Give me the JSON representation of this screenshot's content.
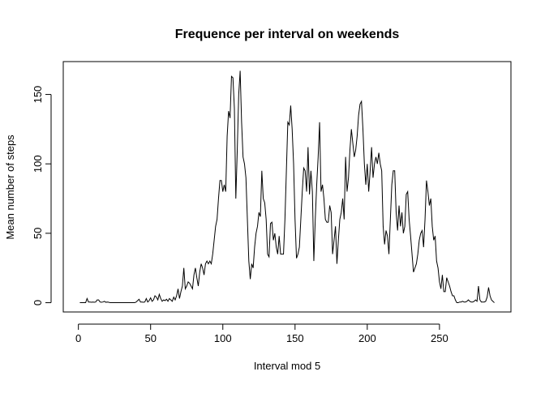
{
  "chart_data": {
    "type": "line",
    "title": "Frequence per interval on weekends",
    "xlabel": "Interval mod 5",
    "ylabel": "Mean number of steps",
    "color": "#000000",
    "x": [
      1,
      2,
      3,
      4,
      5,
      6,
      7,
      8,
      9,
      10,
      11,
      12,
      13,
      14,
      15,
      16,
      17,
      18,
      19,
      20,
      21,
      22,
      23,
      24,
      25,
      26,
      27,
      28,
      29,
      30,
      31,
      32,
      33,
      34,
      35,
      36,
      37,
      38,
      39,
      40,
      41,
      42,
      43,
      44,
      45,
      46,
      47,
      48,
      49,
      50,
      51,
      52,
      53,
      54,
      55,
      56,
      57,
      58,
      59,
      60,
      61,
      62,
      63,
      64,
      65,
      66,
      67,
      68,
      69,
      70,
      71,
      72,
      73,
      74,
      75,
      76,
      77,
      78,
      79,
      80,
      81,
      82,
      83,
      84,
      85,
      86,
      87,
      88,
      89,
      90,
      91,
      92,
      93,
      94,
      95,
      96,
      97,
      98,
      99,
      100,
      101,
      102,
      103,
      104,
      105,
      106,
      107,
      108,
      109,
      110,
      111,
      112,
      113,
      114,
      115,
      116,
      117,
      118,
      119,
      120,
      121,
      122,
      123,
      124,
      125,
      126,
      127,
      128,
      129,
      130,
      131,
      132,
      133,
      134,
      135,
      136,
      137,
      138,
      139,
      140,
      141,
      142,
      143,
      144,
      145,
      146,
      147,
      148,
      149,
      150,
      151,
      152,
      153,
      154,
      155,
      156,
      157,
      158,
      159,
      160,
      161,
      162,
      163,
      164,
      165,
      166,
      167,
      168,
      169,
      170,
      171,
      172,
      173,
      174,
      175,
      176,
      177,
      178,
      179,
      180,
      181,
      182,
      183,
      184,
      185,
      186,
      187,
      188,
      189,
      190,
      191,
      192,
      193,
      194,
      195,
      196,
      197,
      198,
      199,
      200,
      201,
      202,
      203,
      204,
      205,
      206,
      207,
      208,
      209,
      210,
      211,
      212,
      213,
      214,
      215,
      216,
      217,
      218,
      219,
      220,
      221,
      222,
      223,
      224,
      225,
      226,
      227,
      228,
      229,
      230,
      231,
      232,
      233,
      234,
      235,
      236,
      237,
      238,
      239,
      240,
      241,
      242,
      243,
      244,
      245,
      246,
      247,
      248,
      249,
      250,
      251,
      252,
      253,
      254,
      255,
      256,
      257,
      258,
      259,
      260,
      261,
      262,
      263,
      264,
      265,
      266,
      267,
      268,
      269,
      270,
      271,
      272,
      273,
      274,
      275,
      276,
      277,
      278,
      279,
      280,
      281,
      282,
      283,
      284,
      285,
      286,
      287,
      288
    ],
    "values": [
      0,
      0,
      0,
      0,
      0,
      3,
      0.5,
      0.5,
      0.3,
      0.5,
      0.3,
      0.5,
      2,
      2,
      0.5,
      0.3,
      0.5,
      1,
      0.3,
      0.5,
      0.3,
      0,
      0,
      0,
      0,
      0,
      0,
      0,
      0,
      0,
      0,
      0,
      0,
      0,
      0,
      0,
      0,
      0,
      0,
      0.5,
      1.5,
      2.5,
      0.5,
      0.5,
      0.3,
      0.5,
      3,
      0.5,
      1.5,
      3.5,
      1,
      2,
      5,
      4,
      2,
      6,
      3,
      1,
      2,
      1.5,
      2.5,
      1,
      3,
      2,
      1,
      4,
      2,
      5,
      10,
      3,
      8,
      12,
      25,
      10,
      12,
      15,
      14,
      12,
      10,
      20,
      25,
      18,
      12,
      22,
      28,
      25,
      20,
      28,
      30,
      28,
      30,
      28,
      35,
      45,
      55,
      60,
      75,
      88,
      88,
      80,
      85,
      80,
      120,
      138,
      133,
      163,
      162,
      140,
      75,
      110,
      150,
      167,
      130,
      105,
      100,
      90,
      60,
      30,
      17,
      28,
      25,
      40,
      50,
      55,
      65,
      62,
      95,
      75,
      72,
      60,
      35,
      33,
      57,
      58,
      45,
      50,
      40,
      35,
      48,
      35,
      35,
      35,
      60,
      95,
      130,
      128,
      142,
      125,
      100,
      60,
      32,
      35,
      40,
      60,
      80,
      97,
      95,
      80,
      112,
      78,
      95,
      80,
      30,
      60,
      85,
      105,
      130,
      80,
      85,
      75,
      60,
      58,
      58,
      70,
      65,
      35,
      45,
      55,
      28,
      45,
      60,
      65,
      75,
      60,
      105,
      80,
      90,
      110,
      125,
      115,
      105,
      110,
      120,
      135,
      143,
      145,
      125,
      100,
      85,
      100,
      80,
      95,
      112,
      90,
      100,
      105,
      100,
      108,
      100,
      95,
      55,
      42,
      52,
      48,
      35,
      60,
      85,
      95,
      95,
      65,
      52,
      70,
      55,
      65,
      50,
      55,
      78,
      80,
      60,
      48,
      35,
      22,
      25,
      28,
      35,
      45,
      50,
      52,
      40,
      60,
      88,
      80,
      70,
      75,
      55,
      45,
      48,
      30,
      25,
      15,
      10,
      20,
      8,
      8,
      18,
      15,
      12,
      8,
      5,
      5,
      2,
      0,
      0,
      0.5,
      0.5,
      1,
      0.5,
      0.5,
      1,
      2,
      1,
      0.5,
      0.5,
      1,
      2,
      1,
      12,
      2,
      0.5,
      0.5,
      0.5,
      1,
      4,
      11,
      5,
      2,
      1,
      0
    ],
    "xlim": [
      -10.48,
      299.48
    ],
    "ylim": [
      -6.68,
      173.68
    ],
    "xticks": [
      0,
      50,
      100,
      150,
      200,
      250
    ],
    "yticks": [
      0,
      50,
      100,
      150
    ]
  }
}
